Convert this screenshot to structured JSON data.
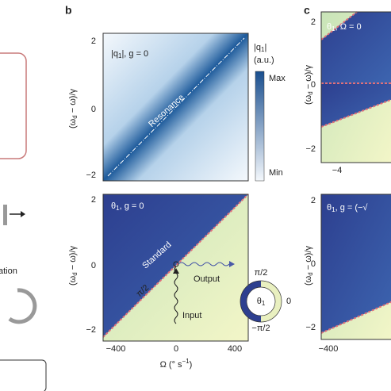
{
  "left": {
    "partial_text": "ation"
  },
  "panel_b": {
    "label": "b",
    "y_label": {
      "main": "(ω",
      "sub": "d",
      "rest": " − ω)/γ"
    },
    "top": {
      "annotation": {
        "main": "|q",
        "sub": "1",
        "rest": "|, g = 0"
      },
      "resonance": "Resonance",
      "yticks": [
        "2",
        "0",
        "−2"
      ],
      "colorbar": {
        "title_main": "|q",
        "title_sub": "1",
        "title_rest": "|",
        "unit": "(a.u.)",
        "max": "Max",
        "min": "Min"
      }
    },
    "bottom": {
      "annotation": {
        "main": "θ",
        "sub": "1",
        "rest": ", g = 0"
      },
      "standard": "Standard",
      "pi_half": "π/2",
      "output": "Output",
      "input": "Input",
      "yticks": [
        "2",
        "0",
        "−2"
      ],
      "xticks": [
        "−400",
        "0",
        "400"
      ],
      "x_label": {
        "main": "Ω (° s",
        "sup": "−1",
        "rest": ")"
      },
      "phase_legend": {
        "top": "π/2",
        "right": "0",
        "bottom": "−π/2",
        "center_main": "θ",
        "center_sub": "1"
      }
    }
  },
  "panel_c": {
    "label": "c",
    "top": {
      "annotation": {
        "main": "θ",
        "sub": "1",
        "rest": ", Ω = 0"
      },
      "yticks": [
        "2",
        "0",
        "−2"
      ],
      "xticks": [
        "−4"
      ]
    },
    "bottom": {
      "annotation": {
        "main": "θ",
        "sub": "1",
        "rest": ", g = (−√"
      },
      "yticks": [
        "2",
        "0",
        "−2"
      ],
      "xticks": [
        "−400"
      ]
    }
  }
}
